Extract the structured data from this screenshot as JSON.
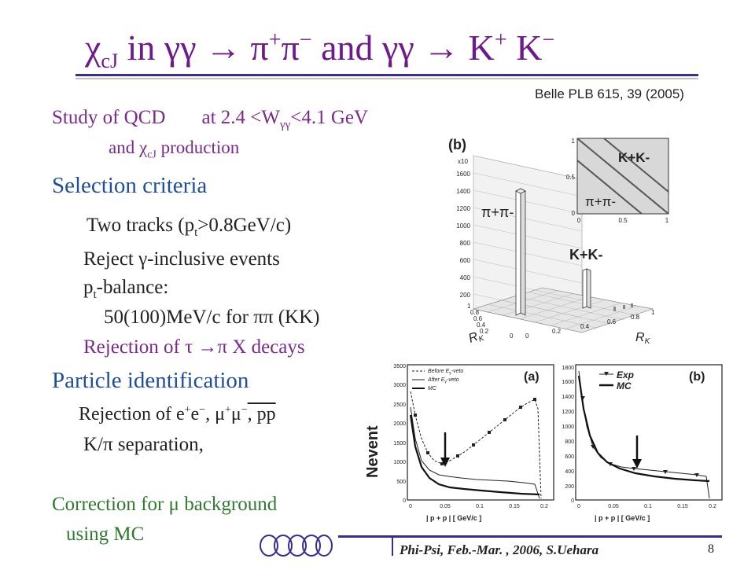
{
  "title": {
    "chi": "χ",
    "chi_sub": "cJ",
    "in": " in ",
    "gg1": "γγ",
    "arrow1": " → ",
    "pi1": "π",
    "plus": "+",
    "pi2": "π",
    "minus": "−",
    "and": " and ",
    "gg2": "γγ",
    "arrow2": " → ",
    "K1": "K",
    "K2": " K"
  },
  "citation": "Belle PLB 615, 39 (2005)",
  "study": {
    "line1_a": "Study of QCD",
    "line1_b": "at  2.4 <W",
    "line1_sub": "γγ",
    "line1_c": "<4.1 GeV",
    "line2_a": "and ",
    "line2_chi": "χ",
    "line2_sub": "cJ",
    "line2_b": " production"
  },
  "selection": {
    "heading": "Selection  criteria",
    "two_tracks_a": "Two tracks (p",
    "two_tracks_sub": "t",
    "two_tracks_b": ">0.8GeV/c)",
    "reject_gamma": "Reject γ-inclusive  events",
    "pt_balance_a": "p",
    "pt_balance_sub": "t",
    "pt_balance_b": "-balance:",
    "pt_balance_vals": "50(100)MeV/c for ππ (KK)",
    "rejection_tau": "Rejection of  τ →π X decays"
  },
  "pid": {
    "heading": "Particle  identification",
    "rejection_a": "Rejection of e",
    "rejection_sup1": "+",
    "rejection_b": "e",
    "rejection_sup2": "−",
    "rejection_c": ", μ",
    "rejection_sup3": "+",
    "rejection_d": "μ",
    "rejection_sup4": "−",
    "rejection_e": ", pp",
    "kpi": "K/π  separation,"
  },
  "correction": {
    "line1": "Correction for μ background",
    "line2": "using MC"
  },
  "figure_top": {
    "panel_label": "(b)",
    "exp_label": "x10",
    "yticks": [
      "1600",
      "1400",
      "1200",
      "1000",
      "800",
      "600",
      "400",
      "200"
    ],
    "label_pipi": "π+π-",
    "label_kk": "K+K-",
    "inset_label_kk": "K+K-",
    "inset_label_pipi": "π+π-",
    "inset_yticks": [
      "1",
      "0.5",
      "0"
    ],
    "inset_xticks": [
      "0",
      "0.5",
      "1"
    ],
    "axis_rk_left": "R",
    "axis_rk_right": "R",
    "axis_sub": "K",
    "floor_ticks_left": [
      "1",
      "0.8",
      "0.6",
      "0.4",
      "0.2",
      "0"
    ],
    "floor_ticks_right": [
      "0",
      "0.2",
      "0.4",
      "0.6",
      "0.8",
      "1"
    ]
  },
  "figure_bottom": {
    "ylabel": "Nevent",
    "panel_a": {
      "label": "(a)",
      "legend": [
        "Before E",
        "After E",
        "MC"
      ],
      "legend_sub": "γ",
      "legend_suffix": "-veto",
      "yticks": [
        "3500",
        "3000",
        "2500",
        "2000",
        "1500",
        "1000",
        "500",
        "0"
      ],
      "xticks": [
        "0",
        "0.05",
        "0.1",
        "0.15",
        "0.2"
      ],
      "xlabel": "| p  + p  | [ GeV/c ]"
    },
    "panel_b": {
      "label": "(b)",
      "legend": [
        "Exp",
        "MC"
      ],
      "yticks": [
        "1800",
        "1600",
        "1400",
        "1200",
        "1000",
        "800",
        "600",
        "400",
        "200",
        "0"
      ],
      "xticks": [
        "0",
        "0.05",
        "0.1",
        "0.15",
        "0.2"
      ],
      "xlabel": "| p  + p  | [ GeV/c ]"
    }
  },
  "footer": {
    "text": "Phi-Psi, Feb.-Mar. , 2006, S.Uehara",
    "page": "8"
  }
}
